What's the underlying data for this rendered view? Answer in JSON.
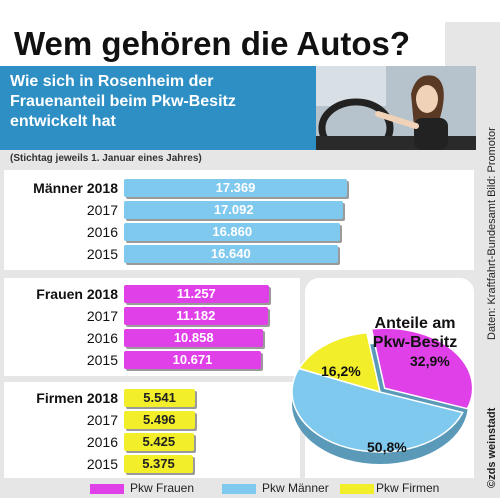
{
  "header": {
    "title": "Wem gehören die Autos?",
    "subtitle_lines": [
      "Wie sich in Rosenheim der",
      "Frauenanteil beim Pkw-Besitz",
      "entwickelt hat"
    ],
    "note": "(Stichtag jeweils 1. Januar eines Jahres)"
  },
  "source": {
    "credit": "Daten: Kraftfahrt-Bundesamt Bild: Promotor",
    "author": "©zds weinstadt"
  },
  "colors": {
    "frauen": "#e040e8",
    "maenner": "#7fc8ee",
    "firmen": "#f2ee2a",
    "banner": "#2e8fc4",
    "frame": "#e6e6e6"
  },
  "chart_data": [
    {
      "type": "bar",
      "group": "Männer",
      "categories": [
        "Männer 2018",
        "2017",
        "2016",
        "2015"
      ],
      "values": [
        17369,
        17092,
        16860,
        16640
      ],
      "value_labels": [
        "17.369",
        "17.092",
        "16.860",
        "16.640"
      ]
    },
    {
      "type": "bar",
      "group": "Frauen",
      "categories": [
        "Frauen 2018",
        "2017",
        "2016",
        "2015"
      ],
      "values": [
        11257,
        11182,
        10858,
        10671
      ],
      "value_labels": [
        "11.257",
        "11.182",
        "10.858",
        "10.671"
      ]
    },
    {
      "type": "bar",
      "group": "Firmen",
      "categories": [
        "Firmen 2018",
        "2017",
        "2016",
        "2015"
      ],
      "values": [
        5541,
        5496,
        5425,
        5375
      ],
      "value_labels": [
        "5.541",
        "5.496",
        "5.425",
        "5.375"
      ]
    },
    {
      "type": "pie",
      "title": "Anteile am Pkw-Besitz",
      "title_lines": [
        "Anteile am",
        "Pkw-Besitz"
      ],
      "labels": [
        "Pkw Frauen",
        "Pkw Männer",
        "Pkw Firmen"
      ],
      "values": [
        32.9,
        50.8,
        16.2
      ],
      "value_labels": [
        "32,9%",
        "50,8%",
        "16,2%"
      ]
    }
  ],
  "legend": [
    "Pkw Frauen",
    "Pkw Männer",
    "Pkw Firmen"
  ]
}
